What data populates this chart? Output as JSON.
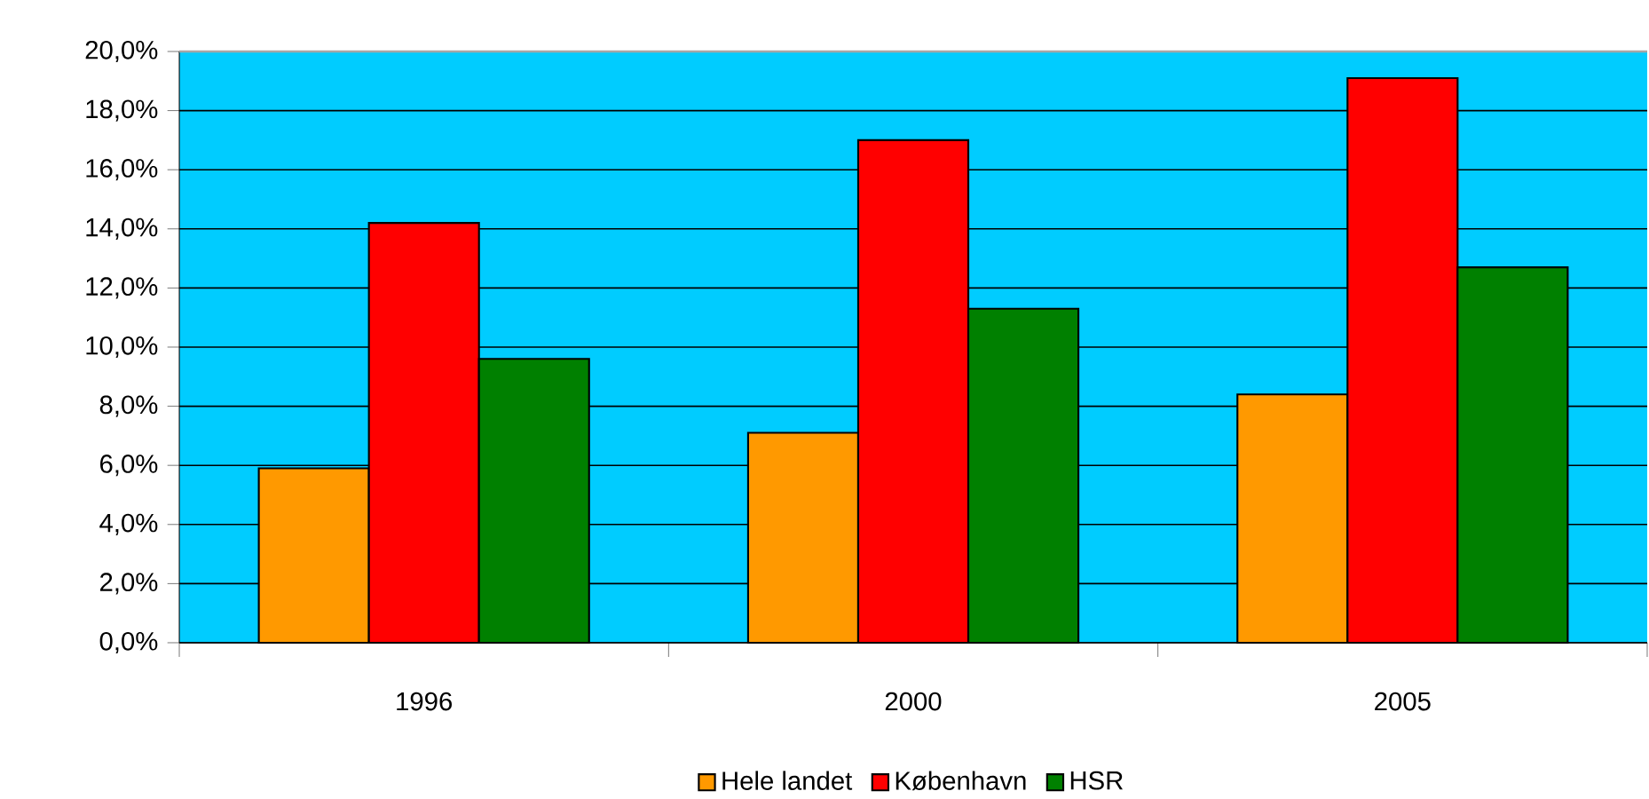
{
  "chart_data": {
    "type": "bar",
    "categories": [
      "1996",
      "2000",
      "2005"
    ],
    "series": [
      {
        "name": "Hele landet",
        "color": "#ff9900",
        "values": [
          5.9,
          7.1,
          8.4
        ]
      },
      {
        "name": "København",
        "color": "#ff0000",
        "values": [
          14.2,
          17.0,
          19.1
        ]
      },
      {
        "name": "HSR",
        "color": "#008000",
        "values": [
          9.6,
          11.3,
          12.7
        ]
      }
    ],
    "ylim": [
      0,
      20
    ],
    "yticks": [
      {
        "value": 0,
        "label": "0,0%"
      },
      {
        "value": 2,
        "label": "2,0%"
      },
      {
        "value": 4,
        "label": "4,0%"
      },
      {
        "value": 6,
        "label": "6,0%"
      },
      {
        "value": 8,
        "label": "8,0%"
      },
      {
        "value": 10,
        "label": "10,0%"
      },
      {
        "value": 12,
        "label": "12,0%"
      },
      {
        "value": 14,
        "label": "14,0%"
      },
      {
        "value": 16,
        "label": "16,0%"
      },
      {
        "value": 18,
        "label": "18,0%"
      },
      {
        "value": 20,
        "label": "20,0%"
      }
    ],
    "grid": "y",
    "legend": "bottom"
  }
}
